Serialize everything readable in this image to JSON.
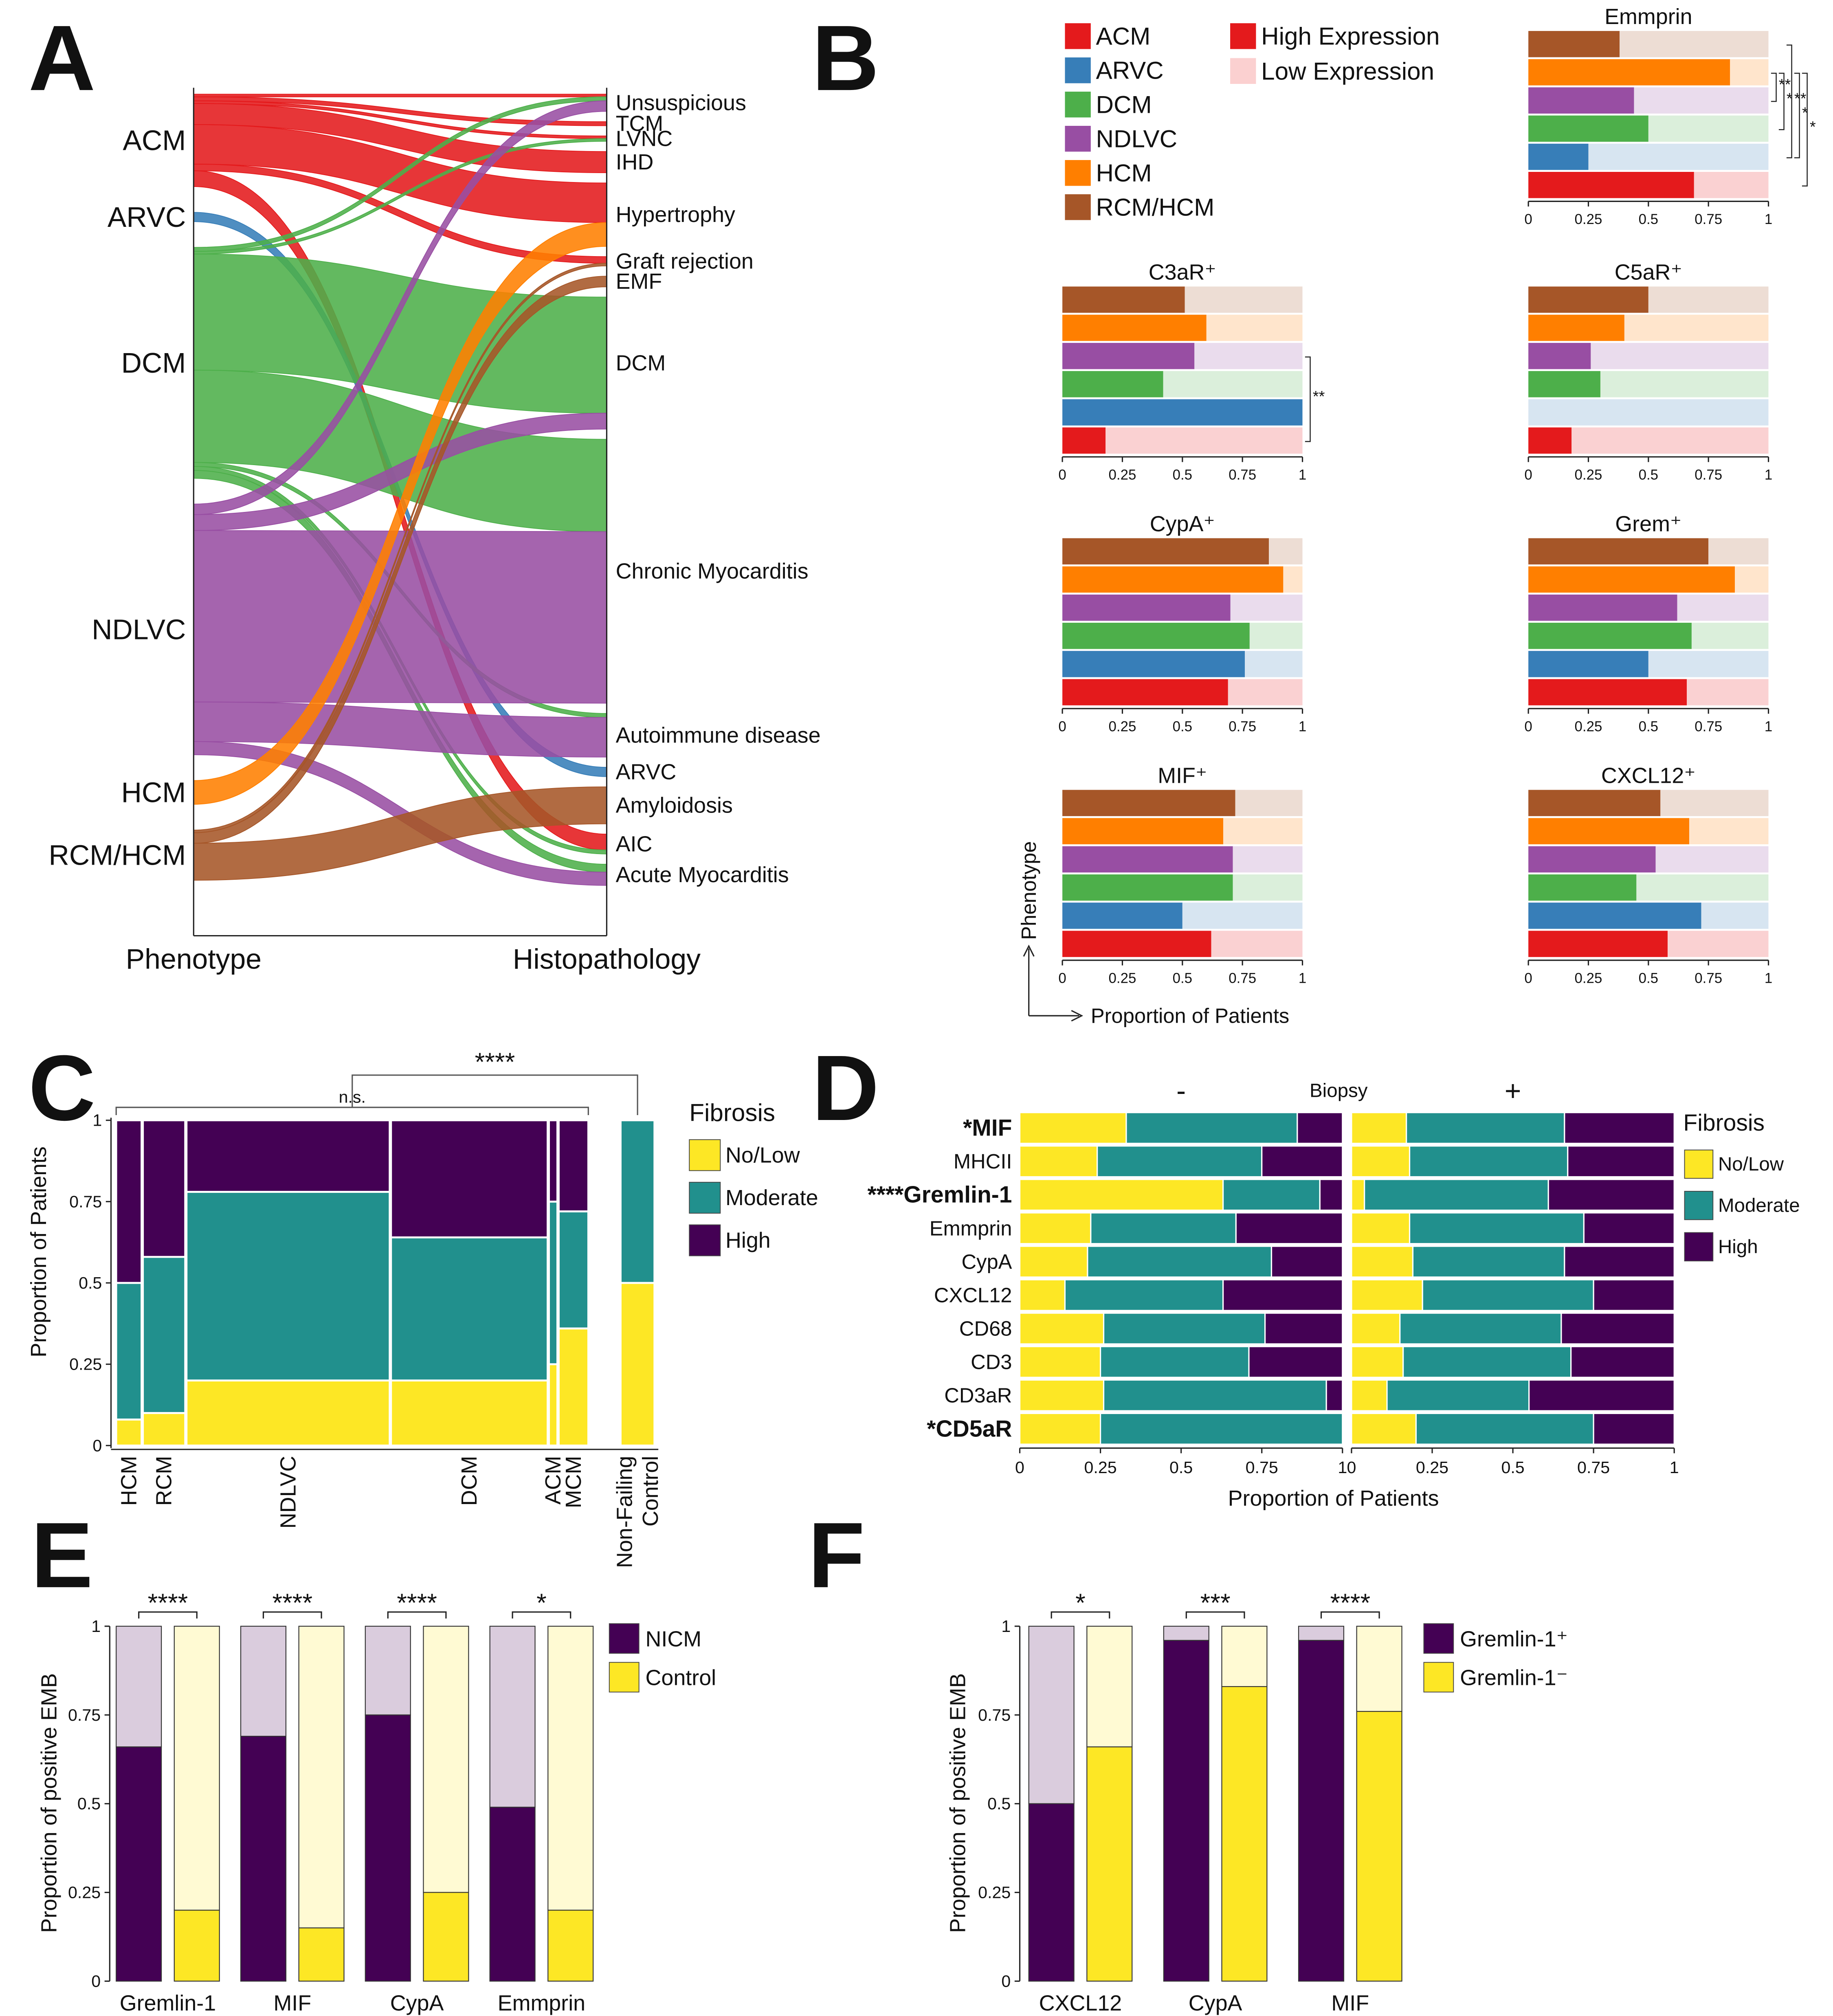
{
  "chart_data": [
    {
      "type": "alluvial",
      "panel": "A",
      "left_nodes": [
        "ACM",
        "ARVC",
        "DCM",
        "NDLVC",
        "HCM",
        "RCM/HCM"
      ],
      "left_colors": [
        "#e41a1c",
        "#377eb8",
        "#4daf4a",
        "#984ea3",
        "#ff7f00",
        "#a65628"
      ],
      "right_nodes": [
        "Unsuspicious",
        "TCM",
        "LVNC",
        "IHD",
        "Hypertrophy",
        "Graft rejection",
        "EMF",
        "DCM",
        "Chronic Myocarditis",
        "Autoimmune disease",
        "ARVC",
        "Amyloidosis",
        "AIC",
        "Acute Myocarditis"
      ],
      "flows": [
        {
          "source": "ACM",
          "target": "Unsuspicious",
          "value": 2
        },
        {
          "source": "ACM",
          "target": "TCM",
          "value": 3
        },
        {
          "source": "ACM",
          "target": "LVNC",
          "value": 2
        },
        {
          "source": "ACM",
          "target": "IHD",
          "value": 16
        },
        {
          "source": "ACM",
          "target": "Hypertrophy",
          "value": 30
        },
        {
          "source": "ACM",
          "target": "Graft rejection",
          "value": 5
        },
        {
          "source": "ACM",
          "target": "AIC",
          "value": 12
        },
        {
          "source": "ARVC",
          "target": "ARVC",
          "value": 7
        },
        {
          "source": "DCM",
          "target": "Unsuspicious",
          "value": 3
        },
        {
          "source": "DCM",
          "target": "LVNC",
          "value": 2
        },
        {
          "source": "DCM",
          "target": "DCM",
          "value": 88
        },
        {
          "source": "DCM",
          "target": "Chronic Myocarditis",
          "value": 70
        },
        {
          "source": "DCM",
          "target": "Autoimmune disease",
          "value": 3
        },
        {
          "source": "DCM",
          "target": "AIC",
          "value": 3
        },
        {
          "source": "DCM",
          "target": "Acute Myocarditis",
          "value": 6
        },
        {
          "source": "NDLVC",
          "target": "Unsuspicious",
          "value": 8
        },
        {
          "source": "NDLVC",
          "target": "DCM",
          "value": 12
        },
        {
          "source": "NDLVC",
          "target": "Chronic Myocarditis",
          "value": 130
        },
        {
          "source": "NDLVC",
          "target": "Autoimmune disease",
          "value": 30
        },
        {
          "source": "NDLVC",
          "target": "Acute Myocarditis",
          "value": 10
        },
        {
          "source": "HCM",
          "target": "Hypertrophy",
          "value": 18
        },
        {
          "source": "RCM/HCM",
          "target": "Graft rejection",
          "value": 2
        },
        {
          "source": "RCM/HCM",
          "target": "EMF",
          "value": 8
        },
        {
          "source": "RCM/HCM",
          "target": "Amyloidosis",
          "value": 28
        }
      ],
      "axis_labels": [
        "Phenotype",
        "Histopathology"
      ]
    },
    {
      "type": "proportion_grid",
      "panel": "B",
      "phenotypes": [
        "ACM",
        "ARVC",
        "DCM",
        "NDLVC",
        "HCM",
        "RCM/HCM"
      ],
      "colors": [
        "#e41a1c",
        "#377eb8",
        "#4daf4a",
        "#984ea3",
        "#ff7f00",
        "#a65628"
      ],
      "expression_legend": [
        {
          "name": "High Expression",
          "color": "#e41a1c"
        },
        {
          "name": "Low Expression",
          "color": "#fbd0d0"
        }
      ],
      "panels": [
        {
          "title": "Emmprin",
          "values": [
            0.69,
            0.25,
            0.5,
            0.44,
            0.84,
            0.38
          ],
          "brackets": [
            {
              "a": 4,
              "b": 3,
              "label": "**"
            },
            {
              "a": 4,
              "b": 2,
              "label": "*"
            },
            {
              "a": 5,
              "b": 1,
              "label": "**"
            },
            {
              "a": 4,
              "b": 1,
              "label": "*"
            },
            {
              "a": 4,
              "b": 0,
              "label": "*"
            }
          ]
        },
        {
          "title": "C3aR⁺",
          "values": [
            0.18,
            1,
            0.42,
            0.55,
            0.6,
            0.51
          ],
          "brackets": [
            {
              "a": 3,
              "b": 0,
              "label": "**"
            }
          ]
        },
        {
          "title": "C5aR⁺",
          "values": [
            0.18,
            0,
            0.3,
            0.26,
            0.4,
            0.5
          ]
        },
        {
          "title": "CypA⁺",
          "values": [
            0.69,
            0.76,
            0.78,
            0.7,
            0.92,
            0.86
          ]
        },
        {
          "title": "Grem⁺",
          "values": [
            0.66,
            0.5,
            0.68,
            0.62,
            0.86,
            0.75
          ]
        },
        {
          "title": "MIF⁺",
          "values": [
            0.62,
            0.5,
            0.71,
            0.71,
            0.67,
            0.72
          ]
        },
        {
          "title": "CXCL12⁺",
          "values": [
            0.58,
            0.72,
            0.45,
            0.53,
            0.67,
            0.55
          ]
        }
      ],
      "xlim": [
        0,
        1
      ],
      "xticks": [
        0,
        0.25,
        0.5,
        0.75,
        1
      ],
      "xlabel": "Proportion of Patients",
      "ylabel": "Phenotype"
    },
    {
      "type": "mosaic",
      "panel": "C",
      "categories": [
        "HCM",
        "RCM",
        "NDLVC",
        "DCM",
        "ACM",
        "MCM",
        [
          "Non-Failing",
          "Control"
        ]
      ],
      "widths": [
        6,
        10,
        48,
        37,
        2,
        7,
        8
      ],
      "series": [
        {
          "name": "No/Low",
          "color": "#fde725",
          "values": [
            0.08,
            0.1,
            0.2,
            0.2,
            0.25,
            0.36,
            0.5
          ]
        },
        {
          "name": "Moderate",
          "color": "#21908d",
          "values": [
            0.42,
            0.48,
            0.58,
            0.44,
            0.5,
            0.36,
            0.5
          ]
        },
        {
          "name": "High",
          "color": "#440154",
          "values": [
            0.5,
            0.42,
            0.22,
            0.36,
            0.25,
            0.28,
            0
          ]
        }
      ],
      "ylim": [
        0,
        1
      ],
      "yticks": [
        0,
        0.25,
        0.5,
        0.75,
        1
      ],
      "ylabel": "Proportion of Patients",
      "legend_title": "Fibrosis",
      "annotations": [
        {
          "label": "n.s.",
          "from": 0,
          "to": 5
        },
        {
          "label": "****",
          "from": [
            0,
            5
          ],
          "to": 6
        }
      ]
    },
    {
      "type": "stacked_barh_facets",
      "panel": "D",
      "categories": [
        "*MIF",
        "MHCII",
        "****Gremlin-1",
        "Emmprin",
        "CypA",
        "CXCL12",
        "CD68",
        "CD3",
        "CD3aR",
        "*CD5aR"
      ],
      "highlight": [
        true,
        false,
        true,
        false,
        false,
        false,
        false,
        false,
        false,
        true
      ],
      "legend_title": "Fibrosis",
      "legend": [
        {
          "name": "No/Low",
          "color": "#fde725"
        },
        {
          "name": "Moderate",
          "color": "#21908d"
        },
        {
          "name": "High",
          "color": "#440154"
        }
      ],
      "facet_title": "Biopsy",
      "facets": [
        {
          "title": "-",
          "values": [
            [
              0.33,
              0.24,
              0.63,
              0.22,
              0.21,
              0.14,
              0.26,
              0.25,
              0.26,
              0.25
            ],
            [
              0.53,
              0.51,
              0.3,
              0.45,
              0.57,
              0.49,
              0.5,
              0.46,
              0.69,
              0.75
            ],
            [
              0.14,
              0.25,
              0.07,
              0.33,
              0.22,
              0.37,
              0.24,
              0.29,
              0.05,
              0
            ]
          ]
        },
        {
          "title": "+",
          "values": [
            [
              0.17,
              0.18,
              0.04,
              0.18,
              0.19,
              0.22,
              0.15,
              0.16,
              0.11,
              0.2
            ],
            [
              0.49,
              0.49,
              0.57,
              0.54,
              0.47,
              0.53,
              0.5,
              0.52,
              0.44,
              0.55
            ],
            [
              0.34,
              0.33,
              0.39,
              0.28,
              0.34,
              0.25,
              0.35,
              0.32,
              0.45,
              0.25
            ]
          ]
        }
      ],
      "xlim": [
        0,
        1
      ],
      "xticks": [
        0,
        0.25,
        0.5,
        0.75,
        1
      ],
      "xlabel": "Proportion of Patients"
    },
    {
      "type": "paired_proportion_bar",
      "panel": "E",
      "categories": [
        "Gremlin-1",
        "MIF",
        "CypA",
        "Emmprin"
      ],
      "series": [
        {
          "name": "NICM",
          "color": "#440154",
          "values": [
            0.66,
            0.69,
            0.75,
            0.49
          ]
        },
        {
          "name": "Control",
          "color": "#fde725",
          "values": [
            0.2,
            0.15,
            0.25,
            0.2
          ]
        }
      ],
      "significance": [
        "****",
        "****",
        "****",
        "*"
      ],
      "ylim": [
        0,
        1
      ],
      "yticks": [
        0,
        0.25,
        0.5,
        0.75,
        1
      ],
      "ylabel": "Proportion of positive EMB"
    },
    {
      "type": "paired_proportion_bar",
      "panel": "F",
      "categories": [
        "CXCL12",
        "CypA",
        "MIF"
      ],
      "series": [
        {
          "name": "Gremlin-1⁺",
          "color": "#440154",
          "values": [
            0.5,
            0.96,
            0.96
          ]
        },
        {
          "name": "Gremlin-1⁻",
          "color": "#fde725",
          "values": [
            0.66,
            0.83,
            0.76
          ]
        }
      ],
      "significance": [
        "*",
        "***",
        "****"
      ],
      "ylim": [
        0,
        1
      ],
      "yticks": [
        0,
        0.25,
        0.5,
        0.75,
        1
      ],
      "ylabel": "Proportion of positive EMB"
    }
  ]
}
